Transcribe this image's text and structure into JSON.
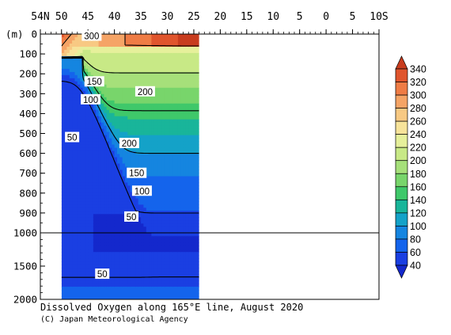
{
  "chart_data": {
    "type": "heatmap",
    "title": "Dissolved Oxygen along 165°E line, August 2020",
    "credit": "(C) Japan Meteorological Agency",
    "y_unit_label": "(m)",
    "x_tick_labels": [
      "54N",
      "50",
      "45",
      "40",
      "35",
      "30",
      "25",
      "20",
      "15",
      "10",
      "5",
      "0",
      "5",
      "10S"
    ],
    "x_ticks": [
      54,
      50,
      45,
      40,
      35,
      30,
      25,
      20,
      15,
      10,
      5,
      0,
      -5,
      -10
    ],
    "xlim": [
      54,
      -10
    ],
    "y_ticks": [
      0,
      100,
      200,
      300,
      400,
      500,
      600,
      700,
      800,
      900,
      1000,
      1500,
      2000
    ],
    "ylim": [
      0,
      2000
    ],
    "y_axis_break_depth": 1000,
    "data_lat_range": [
      50,
      24
    ],
    "colorbar": {
      "levels": [
        340,
        320,
        300,
        280,
        260,
        240,
        220,
        200,
        180,
        160,
        140,
        120,
        100,
        80,
        60,
        40
      ],
      "colors": [
        "#c83c1e",
        "#e0552d",
        "#ef7c45",
        "#f5a466",
        "#f8c983",
        "#f7e39a",
        "#e6f09b",
        "#c8e986",
        "#a6e07a",
        "#78d56b",
        "#3fc86a",
        "#19b59a",
        "#14a2c8",
        "#1585e0",
        "#1464ec",
        "#1a3fe2",
        "#1428cc"
      ]
    },
    "contour_labels": [
      {
        "text": "300",
        "lat": 44.3,
        "depth": 10
      },
      {
        "text": "150",
        "lat": 43.8,
        "depth": 240
      },
      {
        "text": "100",
        "lat": 44.5,
        "depth": 330
      },
      {
        "text": "200",
        "lat": 34.2,
        "depth": 290
      },
      {
        "text": "50",
        "lat": 48.0,
        "depth": 520
      },
      {
        "text": "200",
        "lat": 37.2,
        "depth": 550
      },
      {
        "text": "150",
        "lat": 35.8,
        "depth": 700
      },
      {
        "text": "100",
        "lat": 34.8,
        "depth": 790
      },
      {
        "text": "50",
        "lat": 36.8,
        "depth": 920
      },
      {
        "text": "50",
        "lat": 42.3,
        "depth": 1620
      }
    ]
  }
}
